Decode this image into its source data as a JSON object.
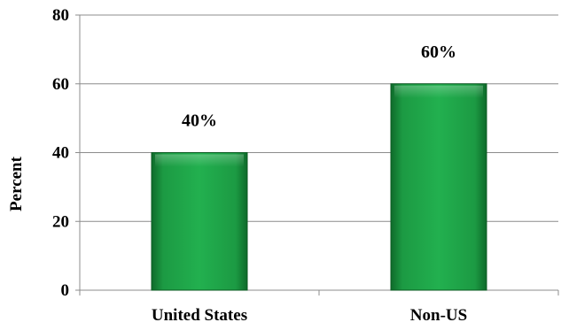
{
  "chart_data": {
    "type": "bar",
    "categories": [
      "United States",
      "Non-US"
    ],
    "values": [
      40,
      60
    ],
    "data_labels": [
      "40%",
      "60%"
    ],
    "ylabel": "Percent",
    "xlabel": "",
    "ylim": [
      0,
      80
    ],
    "yticks": [
      "0",
      "20",
      "40",
      "60",
      "80"
    ],
    "grid": true,
    "bar_color": "#1fa64a"
  }
}
